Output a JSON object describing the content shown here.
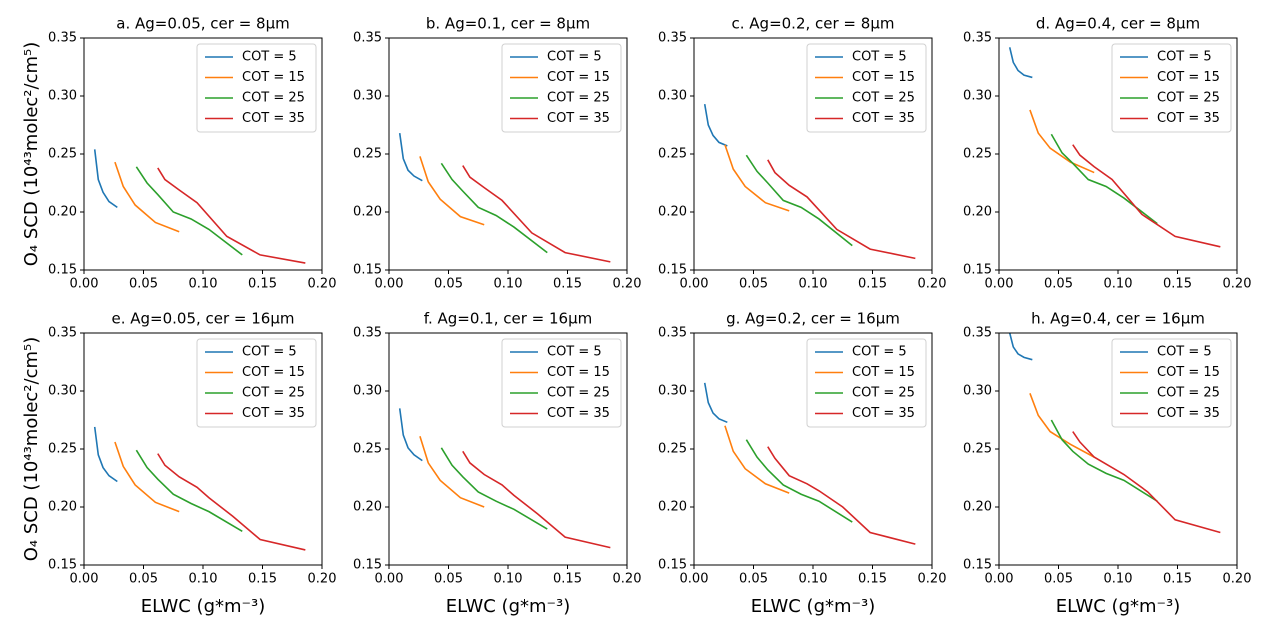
{
  "chart_data": [
    {
      "type": "line",
      "title": "a. Ag=0.05, cer = 8μm",
      "y_label": "O₄ SCD (10⁴³molec²/cm⁵)",
      "xlim": [
        0,
        0.2
      ],
      "ylim": [
        0.15,
        0.35
      ],
      "xticks": [
        {
          "value": 0,
          "label": "0.00"
        },
        0.05,
        {
          "value": 0.1,
          "label": "0.10"
        },
        0.15,
        {
          "value": 0.2,
          "label": "0.20"
        }
      ],
      "yticks": [
        0.15,
        {
          "value": 0.2,
          "label": "0.20"
        },
        0.25,
        {
          "value": 0.3,
          "label": "0.30"
        },
        0.35
      ],
      "legend": "upper right",
      "series": [
        {
          "name": "COT = 5",
          "color": "#1f77b4",
          "x": [
            0.009,
            0.012,
            0.016,
            0.021,
            0.028
          ],
          "values": [
            0.254,
            0.228,
            0.217,
            0.209,
            0.204
          ]
        },
        {
          "name": "COT = 15",
          "color": "#ff7f0e",
          "x": [
            0.026,
            0.033,
            0.043,
            0.06,
            0.08
          ],
          "values": [
            0.243,
            0.222,
            0.206,
            0.191,
            0.183
          ]
        },
        {
          "name": "COT = 25",
          "color": "#2ca02c",
          "x": [
            0.044,
            0.053,
            0.062,
            0.075,
            0.09,
            0.105,
            0.133
          ],
          "values": [
            0.239,
            0.225,
            0.215,
            0.2,
            0.194,
            0.185,
            0.163
          ]
        },
        {
          "name": "COT = 35",
          "color": "#d62728",
          "x": [
            0.062,
            0.068,
            0.08,
            0.095,
            0.12,
            0.148,
            0.186
          ],
          "values": [
            0.238,
            0.228,
            0.219,
            0.208,
            0.179,
            0.163,
            0.156
          ]
        }
      ]
    },
    {
      "type": "line",
      "title": "b. Ag=0.1, cer = 8μm",
      "xlim": [
        0,
        0.2
      ],
      "ylim": [
        0.15,
        0.35
      ],
      "xticks": [
        {
          "value": 0,
          "label": "0.00"
        },
        0.05,
        {
          "value": 0.1,
          "label": "0.10"
        },
        0.15,
        {
          "value": 0.2,
          "label": "0.20"
        }
      ],
      "yticks": [
        0.15,
        {
          "value": 0.2,
          "label": "0.20"
        },
        0.25,
        {
          "value": 0.3,
          "label": "0.30"
        },
        0.35
      ],
      "legend": "upper right",
      "series": [
        {
          "name": "COT = 5",
          "color": "#1f77b4",
          "x": [
            0.009,
            0.012,
            0.016,
            0.021,
            0.028
          ],
          "values": [
            0.268,
            0.246,
            0.236,
            0.231,
            0.227
          ]
        },
        {
          "name": "COT = 15",
          "color": "#ff7f0e",
          "x": [
            0.026,
            0.033,
            0.043,
            0.06,
            0.08
          ],
          "values": [
            0.248,
            0.226,
            0.211,
            0.196,
            0.189
          ]
        },
        {
          "name": "COT = 25",
          "color": "#2ca02c",
          "x": [
            0.044,
            0.053,
            0.062,
            0.075,
            0.09,
            0.105,
            0.133
          ],
          "values": [
            0.242,
            0.228,
            0.218,
            0.204,
            0.197,
            0.187,
            0.165
          ]
        },
        {
          "name": "COT = 35",
          "color": "#d62728",
          "x": [
            0.062,
            0.068,
            0.08,
            0.095,
            0.12,
            0.148,
            0.186
          ],
          "values": [
            0.24,
            0.23,
            0.221,
            0.21,
            0.182,
            0.165,
            0.157
          ]
        }
      ]
    },
    {
      "type": "line",
      "title": "c. Ag=0.2, cer = 8μm",
      "xlim": [
        0,
        0.2
      ],
      "ylim": [
        0.15,
        0.35
      ],
      "xticks": [
        {
          "value": 0,
          "label": "0.00"
        },
        0.05,
        {
          "value": 0.1,
          "label": "0.10"
        },
        0.15,
        {
          "value": 0.2,
          "label": "0.20"
        }
      ],
      "yticks": [
        0.15,
        {
          "value": 0.2,
          "label": "0.20"
        },
        0.25,
        {
          "value": 0.3,
          "label": "0.30"
        },
        0.35
      ],
      "legend": "upper right",
      "series": [
        {
          "name": "COT = 5",
          "color": "#1f77b4",
          "x": [
            0.009,
            0.012,
            0.016,
            0.021,
            0.028
          ],
          "values": [
            0.293,
            0.275,
            0.266,
            0.26,
            0.257
          ]
        },
        {
          "name": "COT = 15",
          "color": "#ff7f0e",
          "x": [
            0.026,
            0.033,
            0.043,
            0.06,
            0.08
          ],
          "values": [
            0.258,
            0.237,
            0.222,
            0.208,
            0.201
          ]
        },
        {
          "name": "COT = 25",
          "color": "#2ca02c",
          "x": [
            0.044,
            0.053,
            0.062,
            0.075,
            0.09,
            0.105,
            0.133
          ],
          "values": [
            0.249,
            0.235,
            0.225,
            0.21,
            0.204,
            0.194,
            0.171
          ]
        },
        {
          "name": "COT = 35",
          "color": "#d62728",
          "x": [
            0.062,
            0.068,
            0.08,
            0.095,
            0.12,
            0.148,
            0.186
          ],
          "values": [
            0.245,
            0.234,
            0.223,
            0.213,
            0.185,
            0.168,
            0.16
          ]
        }
      ]
    },
    {
      "type": "line",
      "title": "d. Ag=0.4, cer = 8μm",
      "xlim": [
        0,
        0.2
      ],
      "ylim": [
        0.15,
        0.35
      ],
      "xticks": [
        {
          "value": 0,
          "label": "0.00"
        },
        0.05,
        {
          "value": 0.1,
          "label": "0.10"
        },
        0.15,
        {
          "value": 0.2,
          "label": "0.20"
        }
      ],
      "yticks": [
        0.15,
        {
          "value": 0.2,
          "label": "0.20"
        },
        0.25,
        {
          "value": 0.3,
          "label": "0.30"
        },
        0.35
      ],
      "legend": "upper right",
      "series": [
        {
          "name": "COT = 5",
          "color": "#1f77b4",
          "x": [
            0.009,
            0.012,
            0.016,
            0.021,
            0.028
          ],
          "values": [
            0.342,
            0.329,
            0.322,
            0.318,
            0.316
          ]
        },
        {
          "name": "COT = 15",
          "color": "#ff7f0e",
          "x": [
            0.026,
            0.033,
            0.043,
            0.06,
            0.08
          ],
          "values": [
            0.288,
            0.268,
            0.255,
            0.243,
            0.234
          ]
        },
        {
          "name": "COT = 25",
          "color": "#2ca02c",
          "x": [
            0.044,
            0.053,
            0.062,
            0.075,
            0.09,
            0.105,
            0.133
          ],
          "values": [
            0.267,
            0.251,
            0.242,
            0.228,
            0.222,
            0.212,
            0.19
          ]
        },
        {
          "name": "COT = 35",
          "color": "#d62728",
          "x": [
            0.062,
            0.068,
            0.08,
            0.095,
            0.12,
            0.148,
            0.186
          ],
          "values": [
            0.258,
            0.249,
            0.239,
            0.228,
            0.198,
            0.179,
            0.17
          ]
        }
      ]
    },
    {
      "type": "line",
      "title": "e. Ag=0.05, cer = 16μm",
      "x_label": "ELWC (g*m⁻³)",
      "y_label": "O₄ SCD (10⁴³molec²/cm⁵)",
      "xlim": [
        0,
        0.2
      ],
      "ylim": [
        0.15,
        0.35
      ],
      "xticks": [
        {
          "value": 0,
          "label": "0.00"
        },
        0.05,
        {
          "value": 0.1,
          "label": "0.10"
        },
        0.15,
        {
          "value": 0.2,
          "label": "0.20"
        }
      ],
      "yticks": [
        0.15,
        {
          "value": 0.2,
          "label": "0.20"
        },
        0.25,
        {
          "value": 0.3,
          "label": "0.30"
        },
        0.35
      ],
      "legend": "upper right",
      "series": [
        {
          "name": "COT = 5",
          "color": "#1f77b4",
          "x": [
            0.009,
            0.012,
            0.016,
            0.021,
            0.028
          ],
          "values": [
            0.269,
            0.245,
            0.234,
            0.227,
            0.222
          ]
        },
        {
          "name": "COT = 15",
          "color": "#ff7f0e",
          "x": [
            0.026,
            0.033,
            0.043,
            0.06,
            0.08
          ],
          "values": [
            0.256,
            0.235,
            0.219,
            0.204,
            0.196
          ]
        },
        {
          "name": "COT = 25",
          "color": "#2ca02c",
          "x": [
            0.044,
            0.053,
            0.062,
            0.075,
            0.09,
            0.105,
            0.133
          ],
          "values": [
            0.249,
            0.234,
            0.224,
            0.211,
            0.203,
            0.196,
            0.179
          ]
        },
        {
          "name": "COT = 35",
          "color": "#d62728",
          "x": [
            0.062,
            0.068,
            0.08,
            0.095,
            0.105,
            0.125,
            0.148,
            0.186
          ],
          "values": [
            0.246,
            0.236,
            0.226,
            0.217,
            0.208,
            0.192,
            0.172,
            0.163
          ]
        }
      ]
    },
    {
      "type": "line",
      "title": "f. Ag=0.1, cer = 16μm",
      "x_label": "ELWC (g*m⁻³)",
      "xlim": [
        0,
        0.2
      ],
      "ylim": [
        0.15,
        0.35
      ],
      "xticks": [
        {
          "value": 0,
          "label": "0.00"
        },
        0.05,
        {
          "value": 0.1,
          "label": "0.10"
        },
        0.15,
        {
          "value": 0.2,
          "label": "0.20"
        }
      ],
      "yticks": [
        0.15,
        {
          "value": 0.2,
          "label": "0.20"
        },
        0.25,
        {
          "value": 0.3,
          "label": "0.30"
        },
        0.35
      ],
      "legend": "upper right",
      "series": [
        {
          "name": "COT = 5",
          "color": "#1f77b4",
          "x": [
            0.009,
            0.012,
            0.016,
            0.021,
            0.028
          ],
          "values": [
            0.285,
            0.262,
            0.251,
            0.245,
            0.24
          ]
        },
        {
          "name": "COT = 15",
          "color": "#ff7f0e",
          "x": [
            0.026,
            0.033,
            0.043,
            0.06,
            0.08
          ],
          "values": [
            0.261,
            0.238,
            0.223,
            0.208,
            0.2
          ]
        },
        {
          "name": "COT = 25",
          "color": "#2ca02c",
          "x": [
            0.044,
            0.053,
            0.062,
            0.075,
            0.09,
            0.105,
            0.133
          ],
          "values": [
            0.251,
            0.236,
            0.226,
            0.213,
            0.205,
            0.198,
            0.181
          ]
        },
        {
          "name": "COT = 35",
          "color": "#d62728",
          "x": [
            0.062,
            0.068,
            0.08,
            0.095,
            0.105,
            0.125,
            0.148,
            0.186
          ],
          "values": [
            0.248,
            0.238,
            0.228,
            0.219,
            0.21,
            0.194,
            0.174,
            0.165
          ]
        }
      ]
    },
    {
      "type": "line",
      "title": "g. Ag=0.2, cer = 16μm",
      "x_label": "ELWC (g*m⁻³)",
      "xlim": [
        0,
        0.2
      ],
      "ylim": [
        0.15,
        0.35
      ],
      "xticks": [
        {
          "value": 0,
          "label": "0.00"
        },
        0.05,
        {
          "value": 0.1,
          "label": "0.10"
        },
        0.15,
        {
          "value": 0.2,
          "label": "0.20"
        }
      ],
      "yticks": [
        0.15,
        {
          "value": 0.2,
          "label": "0.20"
        },
        0.25,
        {
          "value": 0.3,
          "label": "0.30"
        },
        0.35
      ],
      "legend": "upper right",
      "series": [
        {
          "name": "COT = 5",
          "color": "#1f77b4",
          "x": [
            0.009,
            0.012,
            0.016,
            0.021,
            0.028
          ],
          "values": [
            0.307,
            0.29,
            0.281,
            0.276,
            0.273
          ]
        },
        {
          "name": "COT = 15",
          "color": "#ff7f0e",
          "x": [
            0.026,
            0.033,
            0.043,
            0.06,
            0.08
          ],
          "values": [
            0.27,
            0.248,
            0.233,
            0.22,
            0.212
          ]
        },
        {
          "name": "COT = 25",
          "color": "#2ca02c",
          "x": [
            0.044,
            0.053,
            0.062,
            0.075,
            0.09,
            0.105,
            0.133
          ],
          "values": [
            0.258,
            0.243,
            0.232,
            0.219,
            0.211,
            0.205,
            0.187
          ]
        },
        {
          "name": "COT = 35",
          "color": "#d62728",
          "x": [
            0.062,
            0.068,
            0.08,
            0.095,
            0.105,
            0.125,
            0.148,
            0.186
          ],
          "values": [
            0.252,
            0.242,
            0.227,
            0.22,
            0.214,
            0.2,
            0.178,
            0.168
          ]
        }
      ]
    },
    {
      "type": "line",
      "title": "h. Ag=0.4, cer = 16μm",
      "x_label": "ELWC (g*m⁻³)",
      "xlim": [
        0,
        0.2
      ],
      "ylim": [
        0.15,
        0.35
      ],
      "xticks": [
        {
          "value": 0,
          "label": "0.00"
        },
        0.05,
        {
          "value": 0.1,
          "label": "0.10"
        },
        0.15,
        {
          "value": 0.2,
          "label": "0.20"
        }
      ],
      "yticks": [
        0.15,
        {
          "value": 0.2,
          "label": "0.20"
        },
        0.25,
        {
          "value": 0.3,
          "label": "0.30"
        },
        0.35
      ],
      "legend": "upper right",
      "series": [
        {
          "name": "COT = 5",
          "color": "#1f77b4",
          "x": [
            0.009,
            0.012,
            0.016,
            0.021,
            0.028
          ],
          "values": [
            0.35,
            0.338,
            0.332,
            0.329,
            0.327
          ]
        },
        {
          "name": "COT = 15",
          "color": "#ff7f0e",
          "x": [
            0.026,
            0.033,
            0.043,
            0.06,
            0.08
          ],
          "values": [
            0.298,
            0.279,
            0.265,
            0.254,
            0.243
          ]
        },
        {
          "name": "COT = 25",
          "color": "#2ca02c",
          "x": [
            0.044,
            0.053,
            0.062,
            0.075,
            0.09,
            0.105,
            0.133
          ],
          "values": [
            0.275,
            0.258,
            0.248,
            0.237,
            0.229,
            0.223,
            0.205
          ]
        },
        {
          "name": "COT = 35",
          "color": "#d62728",
          "x": [
            0.062,
            0.068,
            0.08,
            0.095,
            0.105,
            0.125,
            0.148,
            0.186
          ],
          "values": [
            0.265,
            0.256,
            0.243,
            0.234,
            0.228,
            0.213,
            0.189,
            0.178
          ]
        }
      ]
    }
  ]
}
